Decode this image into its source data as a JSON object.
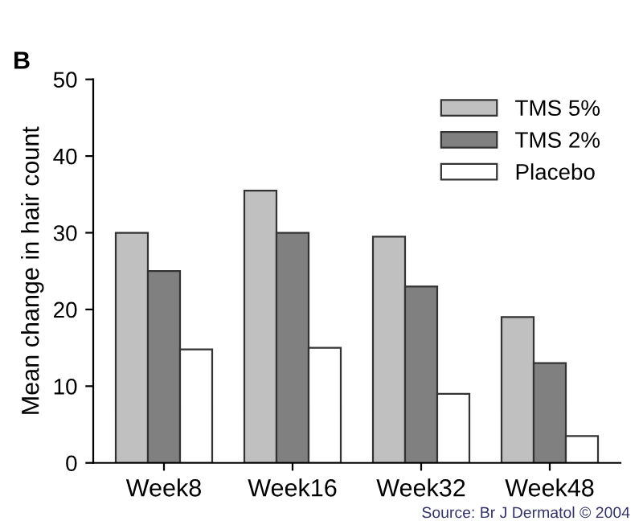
{
  "chart_data": {
    "type": "bar",
    "title": "B",
    "ylabel": "Mean change in hair count",
    "categories": [
      "Week8",
      "Week16",
      "Week32",
      "Week48"
    ],
    "series": [
      {
        "name": "TMS 5%",
        "color": "#c0c0c0",
        "values": [
          30,
          35.5,
          29.5,
          19
        ]
      },
      {
        "name": "TMS 2%",
        "color": "#808080",
        "values": [
          25,
          30,
          23,
          13
        ]
      },
      {
        "name": "Placebo",
        "color": "#ffffff",
        "values": [
          14.8,
          15,
          9,
          3.5
        ]
      }
    ],
    "ylim": [
      0,
      50
    ],
    "yticks": [
      0,
      10,
      20,
      30,
      40,
      50
    ],
    "grid": false,
    "legend": "top right",
    "annotations": [
      "Source: Br J Dermatol © 2004"
    ]
  }
}
